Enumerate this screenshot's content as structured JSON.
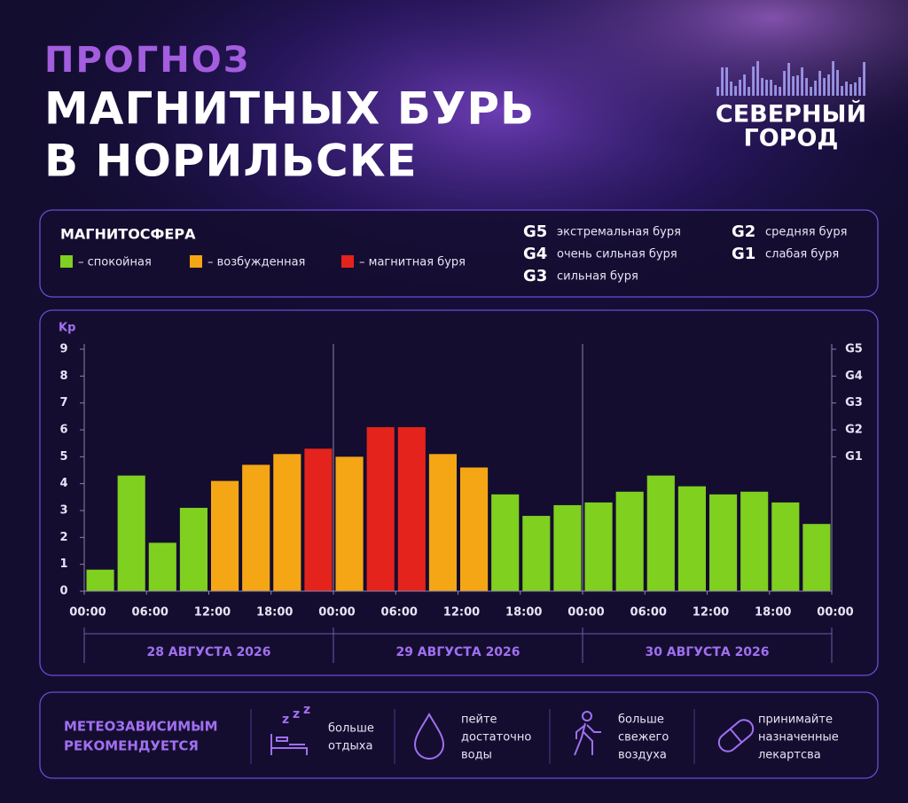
{
  "header": {
    "title_lines": [
      "ПРОГНОЗ",
      "МАГНИТНЫХ БУРЬ",
      "В НОРИЛЬСКЕ"
    ],
    "logo_lines": [
      "СЕВЕРНЫЙ",
      "ГОРОД"
    ]
  },
  "legend": {
    "title": "МАГНИТОСФЕРА",
    "levels": [
      {
        "label": "– спокойная",
        "color": "#7fd01f"
      },
      {
        "label": "– возбужденная",
        "color": "#f5a614"
      },
      {
        "label": "– магнитная буря",
        "color": "#e4231c"
      }
    ],
    "storm_scale": [
      {
        "level": "G5",
        "label": "экстремальная буря"
      },
      {
        "level": "G4",
        "label": "очень сильная буря"
      },
      {
        "level": "G3",
        "label": "сильная буря"
      },
      {
        "level": "G2",
        "label": "средняя буря"
      },
      {
        "level": "G1",
        "label": "слабая буря"
      }
    ]
  },
  "chart_data": {
    "type": "bar",
    "ylabel": "Kp",
    "x": [
      0,
      3,
      6,
      9,
      12,
      15,
      18,
      21,
      24,
      27,
      30,
      33,
      36,
      39,
      42,
      45,
      48,
      51,
      54,
      57,
      60,
      63,
      66,
      69
    ],
    "values": [
      0.8,
      4.3,
      1.8,
      3.1,
      4.1,
      4.7,
      5.1,
      5.3,
      5.0,
      6.1,
      6.1,
      5.1,
      4.6,
      3.6,
      2.8,
      3.2,
      3.3,
      3.7,
      4.3,
      3.9,
      3.6,
      3.7,
      3.3,
      2.5
    ],
    "colors": [
      "#7fd01f",
      "#7fd01f",
      "#7fd01f",
      "#7fd01f",
      "#f5a614",
      "#f5a614",
      "#f5a614",
      "#e4231c",
      "#f5a614",
      "#e4231c",
      "#e4231c",
      "#f5a614",
      "#f5a614",
      "#7fd01f",
      "#7fd01f",
      "#7fd01f",
      "#7fd01f",
      "#7fd01f",
      "#7fd01f",
      "#7fd01f",
      "#7fd01f",
      "#7fd01f",
      "#7fd01f",
      "#7fd01f"
    ],
    "bar_width": 3,
    "xlim": [
      0,
      72
    ],
    "xticks": [
      {
        "value": 0,
        "label": "00:00"
      },
      {
        "value": 6,
        "label": "06:00"
      },
      {
        "value": 12,
        "label": "12:00"
      },
      {
        "value": 18,
        "label": "18:00"
      },
      {
        "value": 24,
        "label": "00:00"
      },
      {
        "value": 30,
        "label": "06:00"
      },
      {
        "value": 36,
        "label": "12:00"
      },
      {
        "value": 42,
        "label": "18:00"
      },
      {
        "value": 48,
        "label": "00:00"
      },
      {
        "value": 54,
        "label": "06:00"
      },
      {
        "value": 60,
        "label": "12:00"
      },
      {
        "value": 66,
        "label": "18:00"
      },
      {
        "value": 72,
        "label": "00:00"
      }
    ],
    "ylim": [
      0,
      9
    ],
    "yticks": [
      0,
      1,
      2,
      3,
      4,
      5,
      6,
      7,
      8,
      9
    ],
    "y2lim": [
      0,
      9
    ],
    "y2ticks": [
      {
        "value": 5,
        "label": "G1"
      },
      {
        "value": 6,
        "label": "G2"
      },
      {
        "value": 7,
        "label": "G3"
      },
      {
        "value": 8,
        "label": "G4"
      },
      {
        "value": 9,
        "label": "G5"
      }
    ],
    "days": [
      {
        "label": "28 АВГУСТА 2026",
        "start": 0,
        "end": 24
      },
      {
        "label": "29 АВГУСТА 2026",
        "start": 24,
        "end": 48
      },
      {
        "label": "30 АВГУСТА 2026",
        "start": 48,
        "end": 72
      }
    ]
  },
  "recommendation": {
    "title_lines": [
      "МЕТЕОЗАВИСИМЫМ",
      "РЕКОМЕНДУЕТСЯ"
    ],
    "items": [
      [
        "больше",
        "отдыха"
      ],
      [
        "пейте",
        "достаточно",
        "воды"
      ],
      [
        "больше",
        "свежего",
        "воздуха"
      ],
      [
        "принимайте",
        "назначенные",
        "лекартсва"
      ]
    ]
  }
}
